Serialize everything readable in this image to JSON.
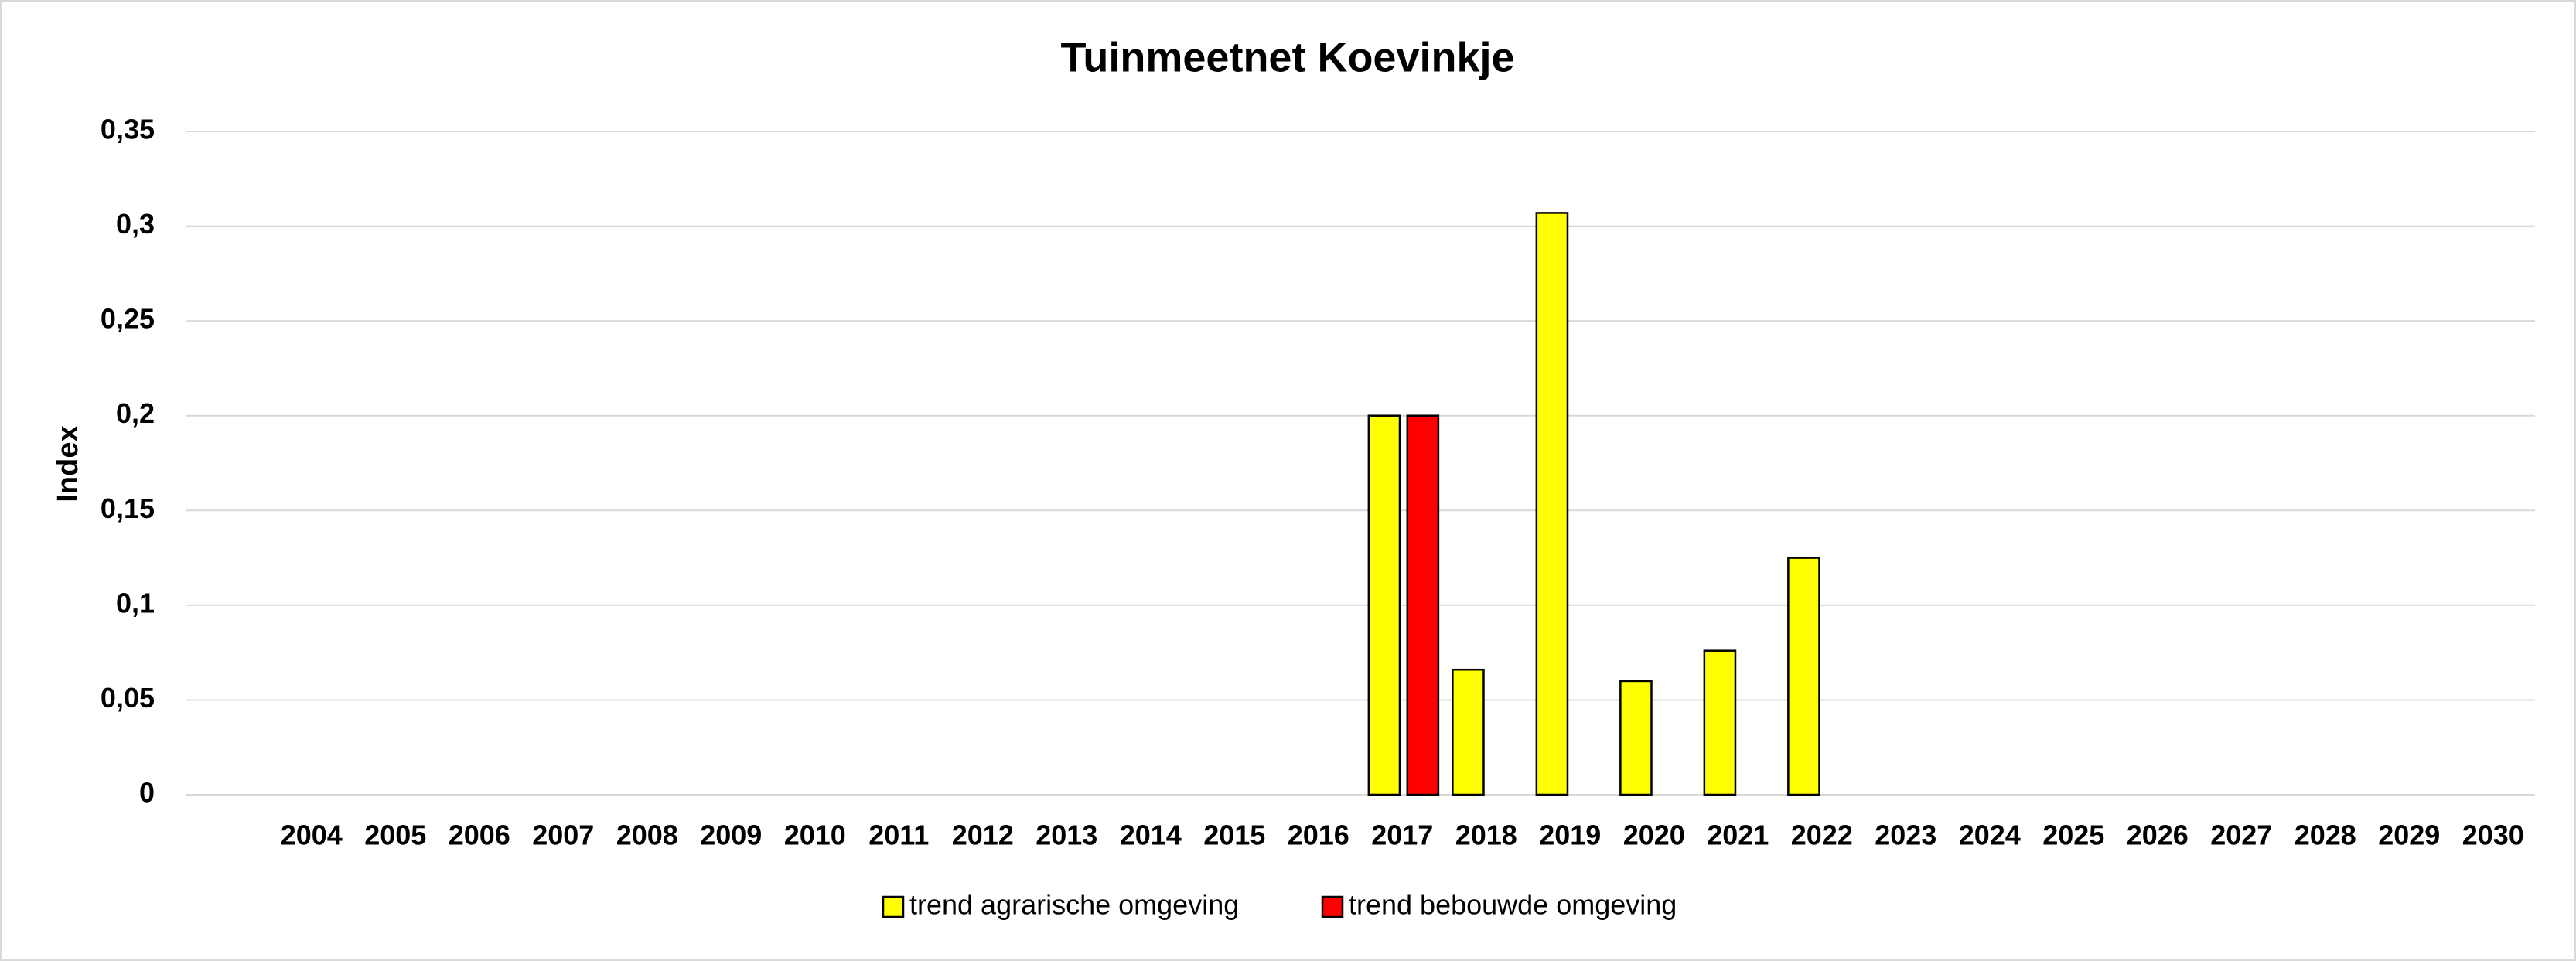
{
  "chart_data": {
    "type": "bar",
    "title": "Tuinmeetnet Koevinkje",
    "y_label": "Index",
    "categories": [
      null,
      "2004",
      "2005",
      "2006",
      "2007",
      "2008",
      "2009",
      "2010",
      "2011",
      "2012",
      "2013",
      "2014",
      "2015",
      "2016",
      "2017",
      "2018",
      "2019",
      "2020",
      "2021",
      "2022",
      "2023",
      "2024",
      "2025",
      "2026",
      "2027",
      "2028",
      "2029",
      "2030"
    ],
    "series": [
      {
        "name": "trend agrarische omgeving",
        "color": "#ffff00",
        "values": [
          null,
          null,
          null,
          null,
          null,
          null,
          null,
          null,
          null,
          null,
          null,
          null,
          null,
          null,
          0.2,
          0.066,
          0.307,
          0.06,
          0.076,
          0.125,
          null,
          null,
          null,
          null,
          null,
          null,
          null,
          null
        ]
      },
      {
        "name": "trend bebouwde omgeving",
        "color": "#ff0000",
        "values": [
          null,
          null,
          null,
          null,
          null,
          null,
          null,
          null,
          null,
          null,
          null,
          null,
          null,
          null,
          0.2,
          null,
          null,
          null,
          null,
          null,
          null,
          null,
          null,
          null,
          null,
          null,
          null,
          null
        ]
      }
    ],
    "ylim": [
      0,
      0.35
    ],
    "yticks": [
      0,
      {
        "value": 0.05,
        "label": "0,05"
      },
      {
        "value": 0.1,
        "label": "0,1"
      },
      {
        "value": 0.15,
        "label": "0,15"
      },
      {
        "value": 0.2,
        "label": "0,2"
      },
      {
        "value": 0.25,
        "label": "0,25"
      },
      {
        "value": 0.3,
        "label": "0,3"
      },
      {
        "value": 0.35,
        "label": "0,35"
      }
    ],
    "grid": true,
    "legend": "bottom"
  }
}
